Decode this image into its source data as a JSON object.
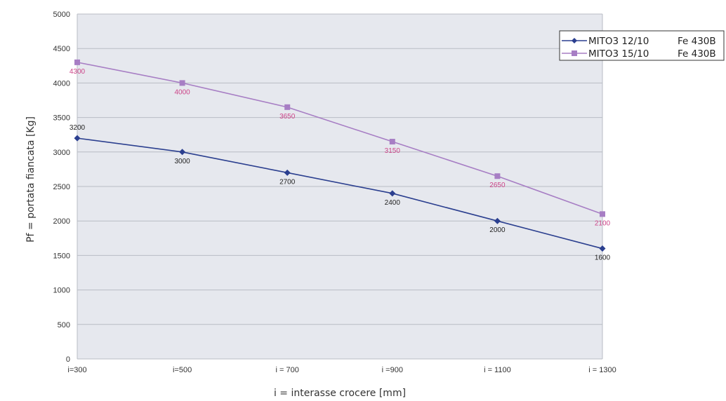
{
  "chart_data": {
    "type": "line",
    "categories": [
      "i=300",
      "i=500",
      "i = 700",
      "i =900",
      "i = 1100",
      "i = 1300"
    ],
    "xlabel": "i = interasse crocere [mm]",
    "ylabel": "Pf = portata fiancata [Kg]",
    "ylim": [
      0,
      5000
    ],
    "yticks": [
      0,
      500,
      1000,
      1500,
      2000,
      2500,
      3000,
      3500,
      4000,
      4500,
      5000
    ],
    "grid": true,
    "legend_position": "top-right",
    "series": [
      {
        "name": "MITO3 12/10",
        "material": "Fe 430B",
        "values": [
          3200,
          3000,
          2700,
          2400,
          2000,
          1600
        ],
        "labels": [
          "3200",
          "3000",
          "2700",
          "2400",
          "2000",
          "1600"
        ],
        "color": "#2b3f8f",
        "marker": "diamond",
        "label_color": "#222222"
      },
      {
        "name": "MITO3 15/10",
        "material": "Fe 430B",
        "values": [
          4300,
          4000,
          3650,
          3150,
          2650,
          2100
        ],
        "labels": [
          "4300",
          "4000",
          "3650",
          "3150",
          "2650",
          "2100"
        ],
        "color": "#a77ec4",
        "marker": "square",
        "label_color": "#cc4488"
      }
    ],
    "plot_background": "#e6e8ee",
    "grid_color": "#b8bcc4"
  }
}
